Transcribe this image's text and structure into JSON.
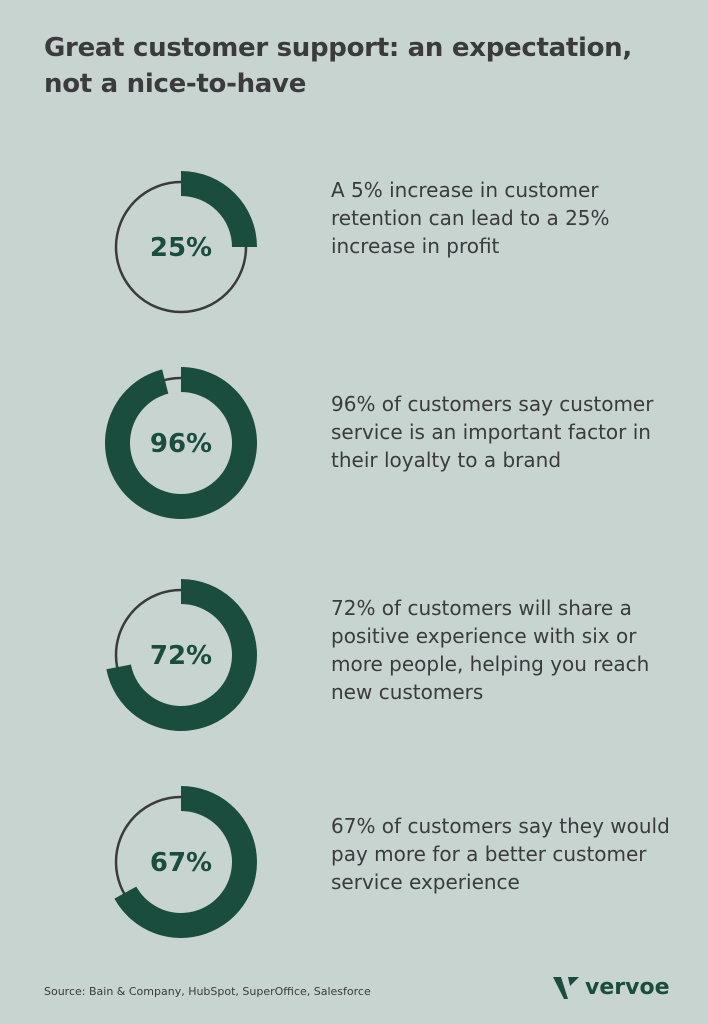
{
  "title": "Great customer support: an expectation, not a nice-to-have",
  "colors": {
    "accent": "#1b4d3f",
    "ring": "#3b3b3d",
    "background": "#c7d4d0"
  },
  "chart_data": [
    {
      "type": "pie",
      "variant": "donut",
      "value": 25,
      "label": "25%",
      "text": "A 5% increase in customer retention can lead to a 25% increase in profit"
    },
    {
      "type": "pie",
      "variant": "donut",
      "value": 96,
      "label": "96%",
      "text": "96% of customers say customer service is an important factor in their loyalty to a brand"
    },
    {
      "type": "pie",
      "variant": "donut",
      "value": 72,
      "label": "72%",
      "text": "72% of customers will share a positive experience with six or more people, helping you reach new customers"
    },
    {
      "type": "pie",
      "variant": "donut",
      "value": 67,
      "label": "67%",
      "text": "67% of customers say they would  pay more for a better customer service experience"
    }
  ],
  "source": "Source: Bain & Company, HubSpot, SuperOffice, Salesforce",
  "logo": "vervoe"
}
